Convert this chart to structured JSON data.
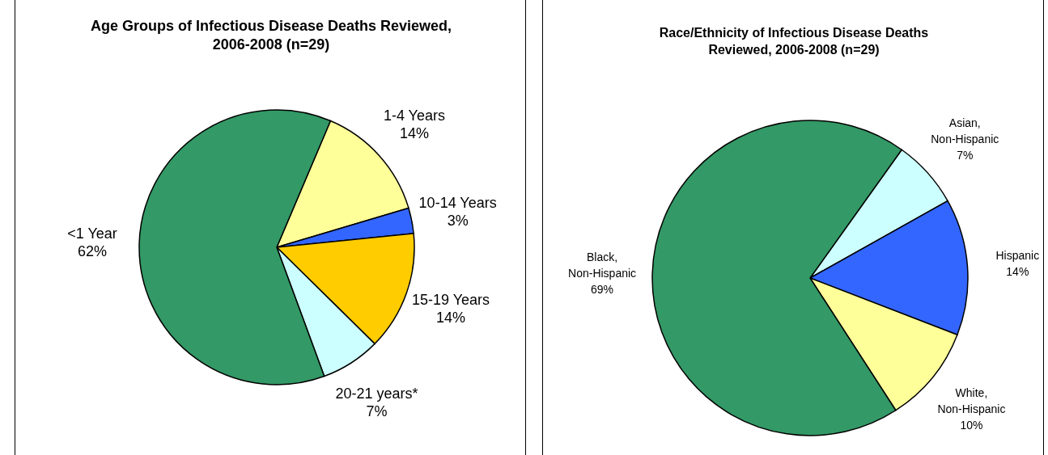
{
  "chart_data": [
    {
      "type": "pie",
      "title": "Age Groups of Infectious Disease Deaths Reviewed, 2006-2008 (n=29)",
      "categories": [
        "1-4 Years",
        "10-14 Years",
        "15-19 Years",
        "20-21 years*",
        "<1 Year"
      ],
      "values": [
        14,
        3,
        14,
        7,
        62
      ],
      "colors": [
        "#ffff99",
        "#3366ff",
        "#ffcc00",
        "#ccffff",
        "#339966"
      ],
      "value_labels": [
        "14%",
        "3%",
        "14%",
        "7%",
        "62%"
      ]
    },
    {
      "type": "pie",
      "title": "Race/Ethnicity of Infectious Disease Deaths Reviewed, 2006-2008 (n=29)",
      "categories": [
        "Asian, Non-Hispanic",
        "Hispanic",
        "White, Non-Hispanic",
        "Black, Non-Hispanic"
      ],
      "values": [
        7,
        14,
        10,
        69
      ],
      "colors": [
        "#ccffff",
        "#3366ff",
        "#ffff99",
        "#339966"
      ],
      "value_labels": [
        "7%",
        "14%",
        "10%",
        "69%"
      ]
    }
  ]
}
